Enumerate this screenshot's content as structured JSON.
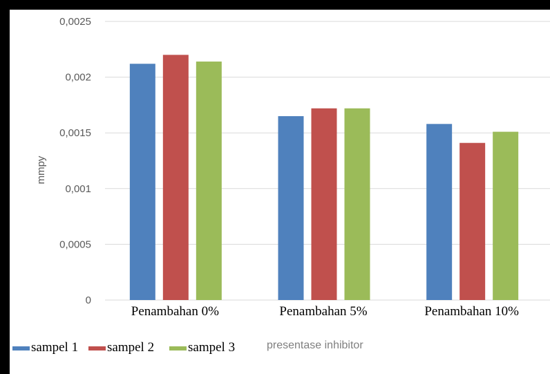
{
  "chart_data": {
    "type": "bar",
    "title": "",
    "xlabel": "presentase inhibitor",
    "ylabel": "mmpy",
    "ylim": [
      0,
      0.0025
    ],
    "yticks": [
      {
        "value": 0,
        "label": "0"
      },
      {
        "value": 0.0005,
        "label": "0,0005"
      },
      {
        "value": 0.001,
        "label": "0,001"
      },
      {
        "value": 0.0015,
        "label": "0,0015"
      },
      {
        "value": 0.002,
        "label": "0,002"
      },
      {
        "value": 0.0025,
        "label": "0,0025"
      }
    ],
    "grid": true,
    "legend_position": "bottom-left",
    "categories": [
      "Penambahan 0%",
      "Penambahan 5%",
      "Penambahan 10%"
    ],
    "series": [
      {
        "name": "sampel 1",
        "color": "#4f81bd",
        "values": [
          0.00212,
          0.00165,
          0.00158
        ]
      },
      {
        "name": "sampel 2",
        "color": "#c0504d",
        "values": [
          0.0022,
          0.00172,
          0.00141
        ]
      },
      {
        "name": "sampel 3",
        "color": "#9bbb59",
        "values": [
          0.00214,
          0.00172,
          0.00151
        ]
      }
    ]
  }
}
